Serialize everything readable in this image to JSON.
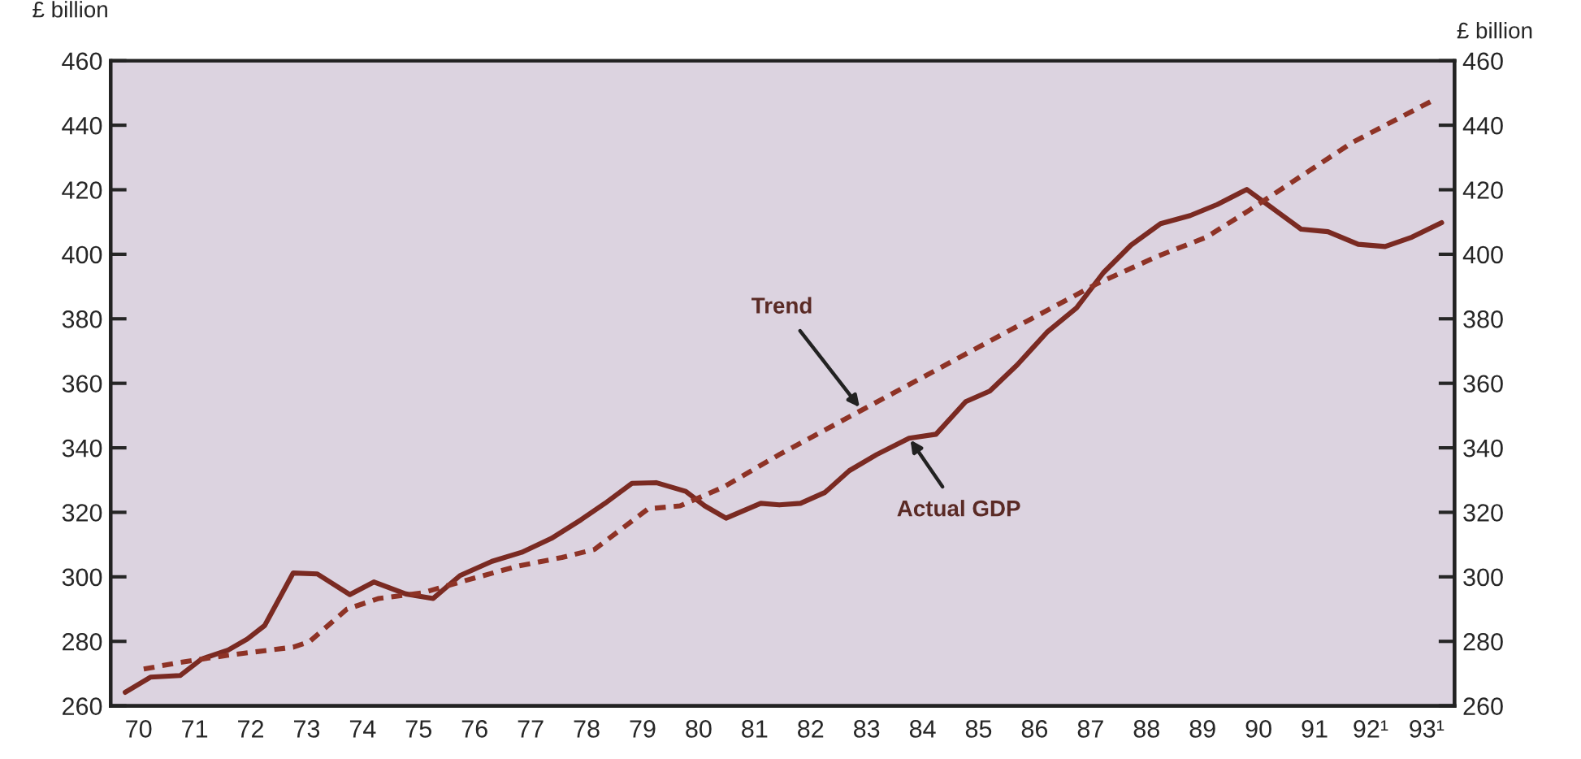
{
  "chart_data": {
    "type": "line",
    "ylabel": "£ billion",
    "y2label": "£ billion",
    "xlim": [
      69.5,
      93.5
    ],
    "ylim": [
      260,
      460
    ],
    "y2lim": [
      260,
      460
    ],
    "xticks": [
      70,
      71,
      72,
      73,
      74,
      75,
      76,
      77,
      78,
      79,
      80,
      81,
      82,
      83,
      84,
      85,
      86,
      87,
      88,
      89,
      90,
      91,
      {
        "value": 92,
        "label": "92¹"
      },
      {
        "value": 93,
        "label": "93¹"
      }
    ],
    "yticks": [
      260,
      280,
      300,
      320,
      340,
      360,
      380,
      400,
      420,
      440,
      460
    ],
    "y2ticks": [
      260,
      280,
      300,
      320,
      340,
      360,
      380,
      400,
      420,
      440,
      460
    ],
    "series": [
      {
        "color": "#7a2a22",
        "line_style": "solid",
        "x": [
          69.76,
          70.21,
          70.74,
          71.12,
          71.6,
          71.94,
          72.25,
          72.76,
          73.19,
          73.77,
          74.2,
          74.77,
          75.26,
          75.74,
          76.31,
          76.84,
          77.37,
          77.9,
          78.33,
          78.81,
          79.24,
          79.77,
          80.11,
          80.49,
          81.11,
          81.44,
          81.82,
          82.26,
          82.69,
          83.18,
          83.76,
          84.24,
          84.77,
          85.2,
          85.69,
          86.22,
          86.75,
          87.23,
          87.72,
          88.25,
          88.78,
          89.26,
          89.79,
          90.23,
          90.76,
          91.24,
          91.78,
          92.26,
          92.74,
          93.27
        ],
        "values": [
          264.2,
          268.9,
          269.4,
          274.5,
          277.3,
          280.7,
          284.9,
          301.2,
          300.9,
          294.5,
          298.4,
          294.7,
          293.3,
          300.4,
          304.8,
          307.6,
          311.9,
          317.7,
          322.8,
          329.0,
          329.2,
          326.5,
          322.0,
          318.2,
          322.8,
          322.3,
          322.8,
          326.2,
          332.9,
          337.9,
          343.0,
          344.2,
          354.3,
          357.6,
          365.7,
          375.8,
          383.4,
          394.3,
          402.8,
          409.5,
          412.0,
          415.4,
          420.1,
          414.5,
          407.8,
          407.0,
          403.1,
          402.4,
          405.3,
          409.8
        ]
      },
      {
        "color": "#8e3326",
        "line_style": "dashed",
        "x": [
          70.09,
          70.74,
          71.6,
          72.76,
          73.05,
          73.72,
          74.29,
          75.06,
          75.74,
          76.79,
          77.56,
          78.14,
          79.1,
          79.67,
          80.44,
          81.44,
          82.98,
          85.49,
          87.13,
          88.2,
          89.07,
          89.84,
          91.68,
          93.08
        ],
        "values": [
          271.4,
          273.5,
          275.7,
          278.2,
          279.9,
          290.0,
          293.3,
          295.0,
          298.4,
          303.4,
          306.0,
          308.5,
          321.1,
          322.0,
          327.8,
          337.9,
          352.3,
          375.8,
          391.0,
          399.4,
          405.3,
          413.7,
          434.7,
          447.4
        ]
      }
    ],
    "annotations": [
      {
        "text": "Trend",
        "x": 82.9,
        "y": 352
      },
      {
        "text": "Actual GDP",
        "x": 83.76,
        "y": 343
      }
    ]
  }
}
